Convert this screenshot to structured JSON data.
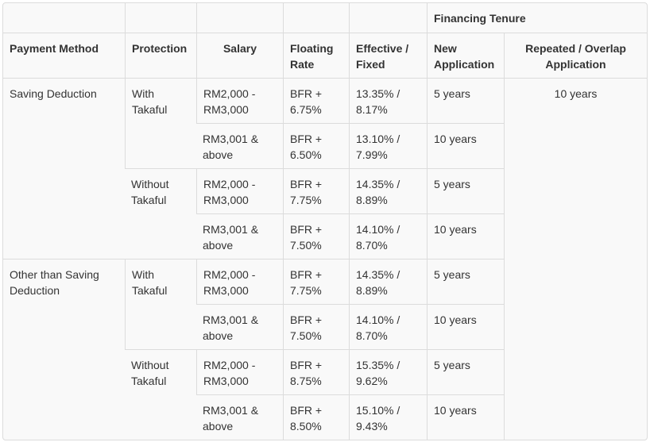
{
  "header": {
    "group_label": "Financing Tenure",
    "columns": [
      "Payment Method",
      "Protection",
      "Salary",
      "Floating Rate",
      "Effective / Fixed",
      "New Application",
      "Repeated / Overlap Application"
    ]
  },
  "repeated_tenure": "10 years",
  "groups": [
    {
      "payment_method": "Saving Deduction",
      "protections": [
        {
          "protection": "With Takaful",
          "rows": [
            {
              "salary": "RM2,000 - RM3,000",
              "floating": "BFR + 6.75%",
              "effective": "13.35% / 8.17%",
              "new_app": "5 years"
            },
            {
              "salary": "RM3,001 & above",
              "floating": "BFR + 6.50%",
              "effective": "13.10% / 7.99%",
              "new_app": "10 years"
            }
          ]
        },
        {
          "protection": "Without Takaful",
          "rows": [
            {
              "salary": "RM2,000 - RM3,000",
              "floating": "BFR + 7.75%",
              "effective": "14.35% / 8.89%",
              "new_app": "5 years"
            },
            {
              "salary": "RM3,001 & above",
              "floating": "BFR + 7.50%",
              "effective": "14.10% / 8.70%",
              "new_app": "10 years"
            }
          ]
        }
      ]
    },
    {
      "payment_method": "Other than Saving Deduction",
      "protections": [
        {
          "protection": "With Takaful",
          "rows": [
            {
              "salary": "RM2,000 - RM3,000",
              "floating": "BFR + 7.75%",
              "effective": "14.35% / 8.89%",
              "new_app": "5 years"
            },
            {
              "salary": "RM3,001 & above",
              "floating": "BFR + 7.50%",
              "effective": "14.10% / 8.70%",
              "new_app": "10 years"
            }
          ]
        },
        {
          "protection": "Without Takaful",
          "rows": [
            {
              "salary": "RM2,000 - RM3,000",
              "floating": "BFR + 8.75%",
              "effective": "15.35% / 9.62%",
              "new_app": "5 years"
            },
            {
              "salary": "RM3,001 & above",
              "floating": "BFR + 8.50%",
              "effective": "15.10% / 9.43%",
              "new_app": "10 years"
            }
          ]
        }
      ]
    }
  ]
}
